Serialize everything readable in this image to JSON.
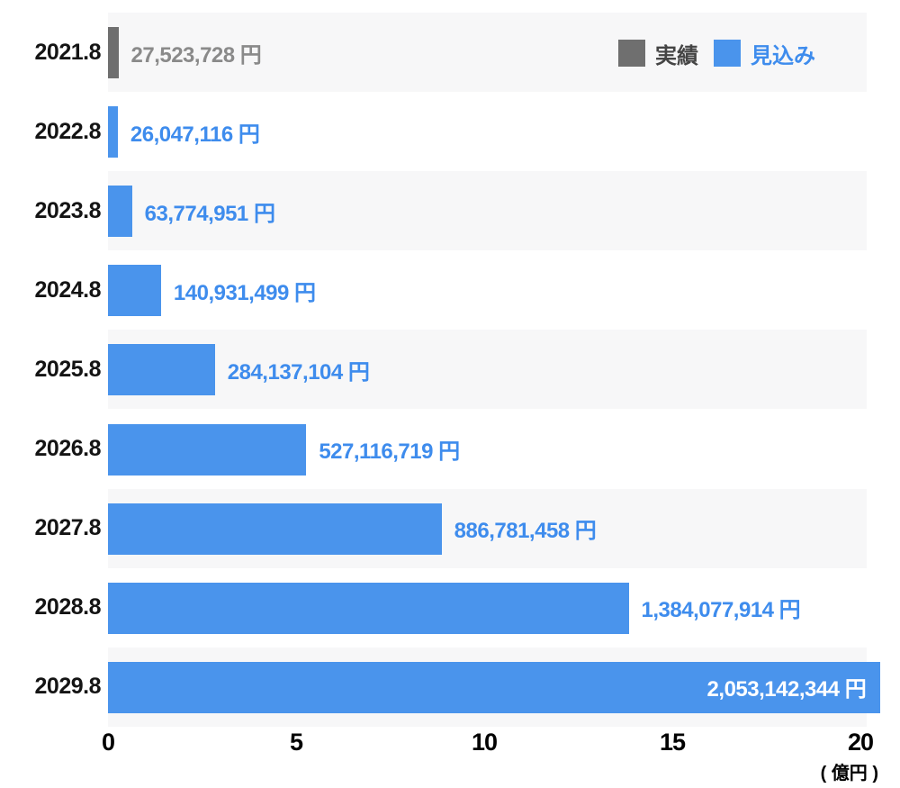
{
  "chart_data": {
    "type": "bar",
    "orientation": "horizontal",
    "title": "",
    "unit_note": "( 億円 )",
    "x_axis": {
      "ticks_oku": [
        0,
        5,
        10,
        15,
        20
      ],
      "max_oku": 20,
      "grid": false
    },
    "categories": [
      "2021.8",
      "2022.8",
      "2023.8",
      "2024.8",
      "2025.8",
      "2026.8",
      "2027.8",
      "2028.8",
      "2029.8"
    ],
    "series": [
      {
        "name": "実績",
        "key": "actual",
        "color": "#6f6f6f",
        "values_yen": [
          27523728,
          null,
          null,
          null,
          null,
          null,
          null,
          null,
          null
        ]
      },
      {
        "name": "見込み",
        "key": "forecast",
        "color": "#4a94ec",
        "values_yen": [
          null,
          26047116,
          63774951,
          140931499,
          284137104,
          527116719,
          886781458,
          1384077914,
          2053142344
        ]
      }
    ],
    "value_labels": [
      "27,523,728 円",
      "26,047,116 円",
      "63,774,951 円",
      "140,931,499 円",
      "284,137,104 円",
      "527,116,719 円",
      "886,781,458 円",
      "1,384,077,914 円",
      "2,053,142,344 円"
    ],
    "value_label_inside": [
      false,
      false,
      false,
      false,
      false,
      false,
      false,
      false,
      true
    ],
    "legend_position": "top-right",
    "row_striping": true
  },
  "colors": {
    "bar_actual": "#6f6f6f",
    "bar_forecast": "#4a94ec",
    "label_actual": "#8a8a8a",
    "label_forecast": "#3e8ced",
    "label_inside": "#ffffff",
    "legend_actual_text": "#454545",
    "legend_forecast_text": "#3e8ced",
    "category_text": "#141414",
    "axis_text": "#000000",
    "row_stripe": "#f7f7f8",
    "row_alt": "#ffffff"
  }
}
